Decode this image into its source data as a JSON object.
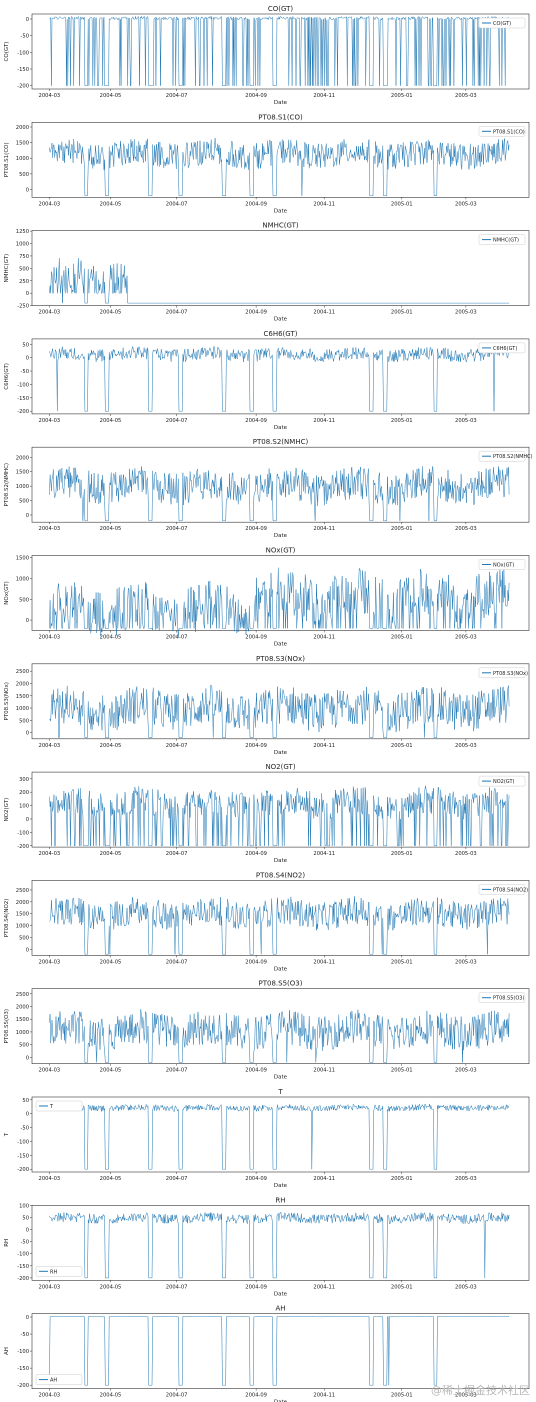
{
  "figure": {
    "xlabel": "Date",
    "x_ticks": [
      "2004-03",
      "2004-05",
      "2004-07",
      "2004-09",
      "2004-11",
      "2005-01",
      "2005-03"
    ],
    "watermark": "@稀土掘金技术社区",
    "line_color": "#1f77b4"
  },
  "chart_data": [
    {
      "type": "line",
      "title": "CO(GT)",
      "ylabel": "CO(GT)",
      "legend": "top-right",
      "x": [
        "2004-03-10",
        "2005-04-04"
      ],
      "ylim": [
        -210,
        15
      ],
      "yticks": [
        0,
        -50,
        -100,
        -150,
        -200
      ],
      "series": [
        {
          "name": "CO(GT)",
          "min": -200,
          "max": 12,
          "baseline": 2
        }
      ]
    },
    {
      "type": "line",
      "title": "PT08.S1(CO)",
      "ylabel": "PT08.S1(CO)",
      "legend": "top-right",
      "ylim": [
        -250,
        2150
      ],
      "yticks": [
        0,
        500,
        1000,
        1500,
        2000
      ],
      "series": [
        {
          "name": "PT08.S1(CO)",
          "min": -200,
          "max": 2040,
          "baseline": 1100
        }
      ]
    },
    {
      "type": "line",
      "title": "NMHC(GT)",
      "ylabel": "NMHC(GT)",
      "legend": "top-right",
      "ylim": [
        -250,
        1260
      ],
      "yticks": [
        1250,
        1000,
        750,
        500,
        250,
        0,
        -250
      ],
      "series": [
        {
          "name": "NMHC(GT)",
          "min": -200,
          "max": 1189,
          "baseline": 150
        }
      ]
    },
    {
      "type": "line",
      "title": "C6H6(GT)",
      "ylabel": "C6H6(GT)",
      "legend": "top-right",
      "ylim": [
        -210,
        70
      ],
      "yticks": [
        50,
        0,
        -50,
        -100,
        -150,
        -200
      ],
      "series": [
        {
          "name": "C6H6(GT)",
          "min": -200,
          "max": 63.7,
          "baseline": 10
        }
      ]
    },
    {
      "type": "line",
      "title": "PT08.S2(NMHC)",
      "ylabel": "PT08.S2(NMHC)",
      "legend": "top-right",
      "ylim": [
        -250,
        2350
      ],
      "yticks": [
        0,
        500,
        1000,
        1500,
        2000
      ],
      "series": [
        {
          "name": "PT08.S2(NMHC)",
          "min": -200,
          "max": 2214,
          "baseline": 950
        }
      ]
    },
    {
      "type": "line",
      "title": "NOx(GT)",
      "ylabel": "NOx(GT)",
      "legend": "top-right",
      "ylim": [
        -250,
        1550
      ],
      "yticks": [
        0,
        500,
        1000,
        1500
      ],
      "series": [
        {
          "name": "NOx(GT)",
          "min": -200,
          "max": 1479,
          "baseline": 200
        }
      ]
    },
    {
      "type": "line",
      "title": "PT08.S3(NOx)",
      "ylabel": "PT08.S3(NOx)",
      "legend": "top-right",
      "ylim": [
        -250,
        2800
      ],
      "yticks": [
        0,
        500,
        1000,
        1500,
        2000,
        2500
      ],
      "series": [
        {
          "name": "PT08.S3(NOx)",
          "min": -200,
          "max": 2683,
          "baseline": 900
        }
      ]
    },
    {
      "type": "line",
      "title": "NO2(GT)",
      "ylabel": "NO2(GT)",
      "legend": "top-right",
      "ylim": [
        -210,
        350
      ],
      "yticks": [
        300,
        200,
        100,
        0,
        -100,
        -200
      ],
      "series": [
        {
          "name": "NO2(GT)",
          "min": -200,
          "max": 340,
          "baseline": 110
        }
      ]
    },
    {
      "type": "line",
      "title": "PT08.S4(NO2)",
      "ylabel": "PT08.S4(NO2)",
      "legend": "top-right",
      "ylim": [
        -250,
        2900
      ],
      "yticks": [
        0,
        500,
        1000,
        1500,
        2000,
        2500
      ],
      "series": [
        {
          "name": "PT08.S4(NO2)",
          "min": -200,
          "max": 2775,
          "baseline": 1450
        }
      ]
    },
    {
      "type": "line",
      "title": "PT08.S5(O3)",
      "ylabel": "PT08.S5(O3)",
      "legend": "top-right",
      "ylim": [
        -250,
        2700
      ],
      "yticks": [
        0,
        500,
        1000,
        1500,
        2000,
        2500
      ],
      "series": [
        {
          "name": "PT08.S5(O3)",
          "min": -200,
          "max": 2523,
          "baseline": 1000
        }
      ]
    },
    {
      "type": "line",
      "title": "T",
      "ylabel": "T",
      "legend": "top-left",
      "ylim": [
        -210,
        60
      ],
      "yticks": [
        50,
        0,
        -50,
        -100,
        -150,
        -200
      ],
      "series": [
        {
          "name": "T",
          "min": -200,
          "max": 44.6,
          "baseline": 20
        }
      ]
    },
    {
      "type": "line",
      "title": "RH",
      "ylabel": "RH",
      "legend": "bottom-left",
      "ylim": [
        -210,
        100
      ],
      "yticks": [
        100,
        50,
        0,
        -50,
        -100,
        -150,
        -200
      ],
      "series": [
        {
          "name": "RH",
          "min": -200,
          "max": 88.7,
          "baseline": 45
        }
      ]
    },
    {
      "type": "line",
      "title": "AH",
      "ylabel": "AH",
      "legend": "bottom-left",
      "ylim": [
        -210,
        10
      ],
      "yticks": [
        0,
        -50,
        -100,
        -150,
        -200
      ],
      "series": [
        {
          "name": "AH",
          "min": -200,
          "max": 2.2,
          "baseline": 1
        }
      ]
    }
  ]
}
